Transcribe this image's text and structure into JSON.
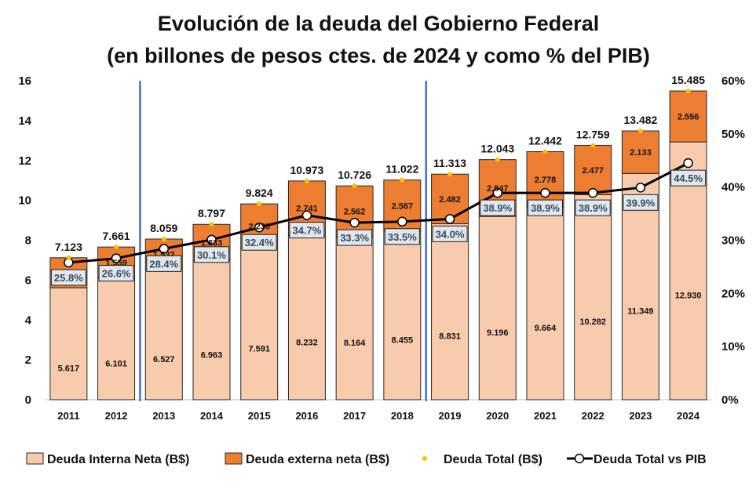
{
  "chart_data": {
    "type": "bar",
    "title_line1": "Evolución de la deuda del Gobierno Federal",
    "title_line2": "(en billones de pesos ctes. de 2024 y como % del PIB)",
    "categories": [
      "2011",
      "2012",
      "2013",
      "2014",
      "2015",
      "2016",
      "2017",
      "2018",
      "2019",
      "2020",
      "2021",
      "2022",
      "2023",
      "2024"
    ],
    "series": [
      {
        "name": "Deuda Interna Neta (B$)",
        "kind": "stacked-bar",
        "color": "#f8cbad",
        "values": [
          5.617,
          6.101,
          6.527,
          6.963,
          7.591,
          8.232,
          8.164,
          8.455,
          8.831,
          9.196,
          9.664,
          10.282,
          11.349,
          12.93
        ],
        "labels": [
          "5.617",
          "6.101",
          "6.527",
          "6.963",
          "7.591",
          "8.232",
          "8.164",
          "8.455",
          "8.831",
          "9.196",
          "9.664",
          "10.282",
          "11.349",
          "12.930"
        ]
      },
      {
        "name": "Deuda externa neta (B$)",
        "kind": "stacked-bar",
        "color": "#ed7d31",
        "values": [
          1.506,
          1.559,
          1.532,
          1.833,
          2.233,
          2.741,
          2.562,
          2.567,
          2.482,
          2.847,
          2.778,
          2.477,
          2.133,
          2.556
        ],
        "labels": [
          "",
          "1.559",
          "1.532",
          "1.833",
          "2.233",
          "2.741",
          "2.562",
          "2.567",
          "2.482",
          "2.847",
          "2.778",
          "2.477",
          "2.133",
          "2.556"
        ]
      },
      {
        "name": "Deuda Total (B$)",
        "kind": "dot",
        "color": "#ffc000",
        "values": [
          7.123,
          7.661,
          8.059,
          8.797,
          9.824,
          10.973,
          10.726,
          11.022,
          11.313,
          12.043,
          12.442,
          12.759,
          13.482,
          15.485
        ],
        "labels": [
          "7.123",
          "7.661",
          "8.059",
          "8.797",
          "9.824",
          "10.973",
          "10.726",
          "11.022",
          "11.313",
          "12.043",
          "12.442",
          "12.759",
          "13.482",
          "15.485"
        ]
      },
      {
        "name": "Deuda Total vs PIB",
        "kind": "line-secondary",
        "color": "#000000",
        "values": [
          25.8,
          26.6,
          28.4,
          30.1,
          32.4,
          34.7,
          33.3,
          33.5,
          34.0,
          38.9,
          38.9,
          38.9,
          39.9,
          44.5
        ],
        "labels": [
          "25.8%",
          "26.6%",
          "28.4%",
          "30.1%",
          "32.4%",
          "34.7%",
          "33.3%",
          "33.5%",
          "34.0%",
          "38.9%",
          "38.9%",
          "38.9%",
          "39.9%",
          "44.5%"
        ]
      }
    ],
    "y_left": {
      "range": [
        0,
        16
      ],
      "ticks": [
        0,
        2,
        4,
        6,
        8,
        10,
        12,
        14,
        16
      ],
      "tick_labels": [
        "0",
        "2",
        "4",
        "6",
        "8",
        "10",
        "12",
        "14",
        "16"
      ]
    },
    "y_right": {
      "range": [
        0,
        60
      ],
      "ticks": [
        0,
        10,
        20,
        30,
        40,
        50,
        60
      ],
      "tick_labels": [
        "0%",
        "10%",
        "20%",
        "30%",
        "40%",
        "50%",
        "60%"
      ]
    },
    "period_dividers_after": [
      "2012",
      "2018"
    ],
    "divider_color": "#4472c4",
    "grid": false,
    "legend_position": "bottom"
  }
}
